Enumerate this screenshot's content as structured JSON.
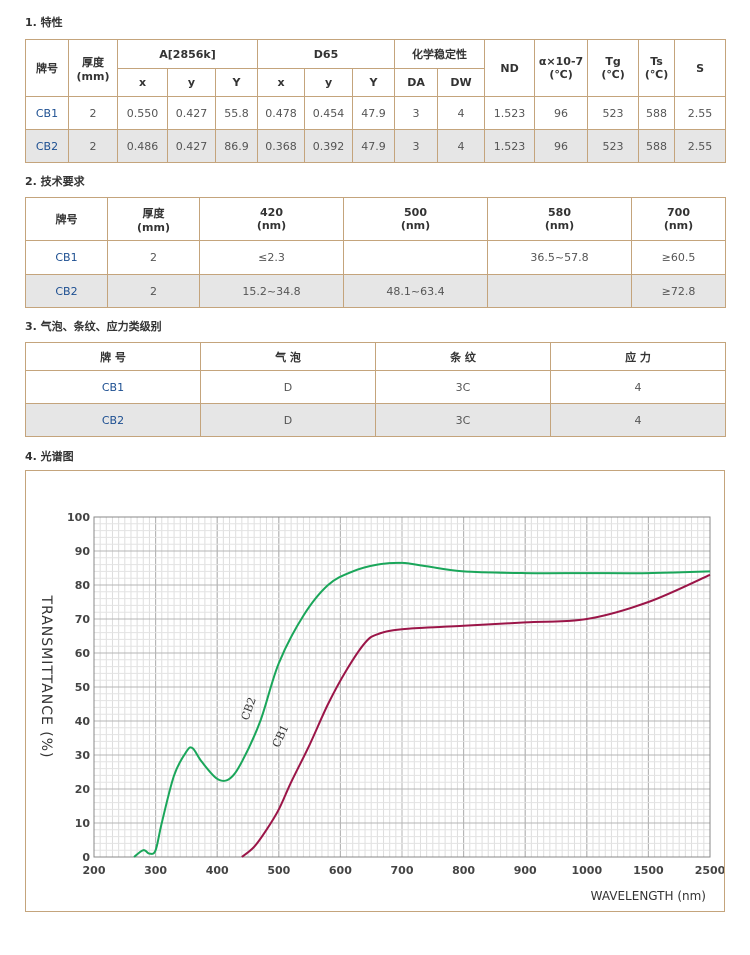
{
  "section1": {
    "title": "1. 特性",
    "headers": {
      "brand": "牌号",
      "thickness": "厚度\n(mm)",
      "group_a": "A[2856k]",
      "group_d65": "D65",
      "group_chem": "化学稳定性",
      "nd": "ND",
      "alpha": "α×10-7\n(℃)",
      "tg": "Tg\n(℃)",
      "ts": "Ts\n(℃)",
      "s": "S",
      "sub": [
        "x",
        "y",
        "Y",
        "x",
        "y",
        "Y",
        "DA",
        "DW"
      ]
    },
    "rows": [
      {
        "brand": "CB1",
        "cells": [
          "2",
          "0.550",
          "0.427",
          "55.8",
          "0.478",
          "0.454",
          "47.9",
          "3",
          "4",
          "1.523",
          "96",
          "523",
          "588",
          "2.55"
        ]
      },
      {
        "brand": "CB2",
        "cells": [
          "2",
          "0.486",
          "0.427",
          "86.9",
          "0.368",
          "0.392",
          "47.9",
          "3",
          "4",
          "1.523",
          "96",
          "523",
          "588",
          "2.55"
        ]
      }
    ]
  },
  "section2": {
    "title": "2. 技术要求",
    "headers": [
      "牌号",
      "厚度\n(mm)",
      "420\n(nm)",
      "500\n(nm)",
      "580\n(nm)",
      "700\n(nm)"
    ],
    "rows": [
      {
        "brand": "CB1",
        "cells": [
          "2",
          "≤2.3",
          "",
          "36.5~57.8",
          "≥60.5"
        ]
      },
      {
        "brand": "CB2",
        "cells": [
          "2",
          "15.2~34.8",
          "48.1~63.4",
          "",
          "≥72.8"
        ]
      }
    ]
  },
  "section3": {
    "title": "3. 气泡、条纹、应力类级别",
    "headers": [
      "牌 号",
      "气 泡",
      "条 纹",
      "应 力"
    ],
    "rows": [
      {
        "brand": "CB1",
        "cells": [
          "D",
          "3C",
          "4"
        ]
      },
      {
        "brand": "CB2",
        "cells": [
          "D",
          "3C",
          "4"
        ]
      }
    ]
  },
  "section4": {
    "title": "4. 光谱图"
  },
  "chart_data": {
    "type": "line",
    "xlabel": "WAVELENGTH (nm)",
    "ylabel": "TRANSMITTANCE (%)",
    "x_ticks": [
      "200",
      "300",
      "400",
      "500",
      "600",
      "700",
      "800",
      "900",
      "1000",
      "1500",
      "2500"
    ],
    "y_ticks": [
      "0",
      "10",
      "20",
      "30",
      "40",
      "50",
      "60",
      "70",
      "80",
      "90",
      "100"
    ],
    "ylim": [
      0,
      100
    ],
    "grid": true,
    "series": [
      {
        "name": "CB2",
        "color": "#1aa65a",
        "x": [
          265,
          280,
          290,
          300,
          310,
          330,
          350,
          360,
          375,
          400,
          420,
          440,
          470,
          500,
          540,
          580,
          620,
          660,
          700,
          740,
          800,
          900,
          1000,
          1500,
          2500
        ],
        "y": [
          0,
          2,
          1,
          2,
          10,
          24,
          31,
          32,
          28,
          23,
          23,
          28,
          40,
          57,
          71,
          80,
          84,
          86,
          86.5,
          85.5,
          84,
          83.5,
          83.5,
          83.5,
          84
        ]
      },
      {
        "name": "CB1",
        "color": "#9b1548",
        "x": [
          440,
          460,
          480,
          500,
          520,
          550,
          580,
          610,
          640,
          660,
          700,
          800,
          900,
          1000,
          1500,
          2500
        ],
        "y": [
          0,
          3,
          8,
          14,
          22,
          33,
          45,
          55,
          63,
          65.5,
          67,
          68,
          69,
          70,
          75,
          83
        ]
      }
    ]
  }
}
